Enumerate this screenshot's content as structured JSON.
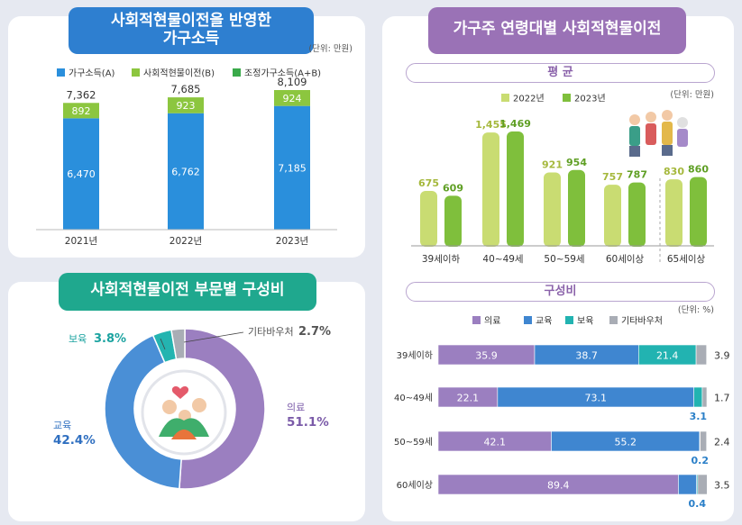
{
  "panel1": {
    "title_line1": "사회적현물이전을 반영한",
    "title_line2": "가구소득",
    "unit": "(단위: 만원)",
    "colors": {
      "income": "#2a8fdc",
      "transfer": "#8cc63f"
    }
  },
  "panel2": {
    "title": "사회적현물이전 부문별 구성비",
    "colors": [
      "#9b7fc0",
      "#4a8fd6",
      "#24b4b0",
      "#a9adb5"
    ]
  },
  "panel3": {
    "title": "가구주 연령대별 사회적현물이전",
    "section_avg": "평 균",
    "section_comp": "구성비",
    "unit_avg": "(단위: 만원)",
    "unit_comp": "(단위: %)",
    "colors": {
      "y2022": "#c9dc72",
      "y2023": "#7fbf3c"
    }
  },
  "chart_data": [
    {
      "type": "bar",
      "stacked": true,
      "categories": [
        "2021년",
        "2022년",
        "2023년"
      ],
      "series": [
        {
          "name": "가구소득(A)",
          "values": [
            6470,
            6762,
            7185
          ]
        },
        {
          "name": "사회적현물이전(B)",
          "values": [
            892,
            923,
            924
          ]
        }
      ],
      "totals_name": "조정가구소득(A+B)",
      "totals": [
        7362,
        7685,
        8109
      ],
      "legend": "top"
    },
    {
      "type": "pie",
      "donut": true,
      "labels": [
        "의료",
        "교육",
        "보육",
        "기타바우처"
      ],
      "values": [
        51.1,
        42.4,
        3.8,
        2.7
      ]
    },
    {
      "type": "bar",
      "categories": [
        "39세이하",
        "40~49세",
        "50~59세",
        "60세이상",
        "65세이상"
      ],
      "series": [
        {
          "name": "2022년",
          "values": [
            675,
            1455,
            921,
            757,
            830
          ]
        },
        {
          "name": "2023년",
          "values": [
            609,
            1469,
            954,
            787,
            860
          ]
        }
      ],
      "legend": "top"
    },
    {
      "type": "bar",
      "horizontal": true,
      "stacked": true,
      "categories": [
        "39세이하",
        "40~49세",
        "50~59세",
        "60세이상"
      ],
      "series": [
        {
          "name": "의료",
          "values": [
            35.9,
            22.1,
            42.1,
            89.4
          ]
        },
        {
          "name": "교육",
          "values": [
            38.7,
            73.1,
            55.2,
            6.8
          ]
        },
        {
          "name": "보육",
          "values": [
            21.4,
            3.1,
            0.2,
            0.4
          ]
        },
        {
          "name": "기타바우처",
          "values": [
            3.9,
            1.7,
            2.4,
            3.5
          ]
        }
      ],
      "colors": [
        "#9b7fc0",
        "#3f86d0",
        "#22b3b1",
        "#a9adb5"
      ],
      "legend": "top"
    }
  ]
}
